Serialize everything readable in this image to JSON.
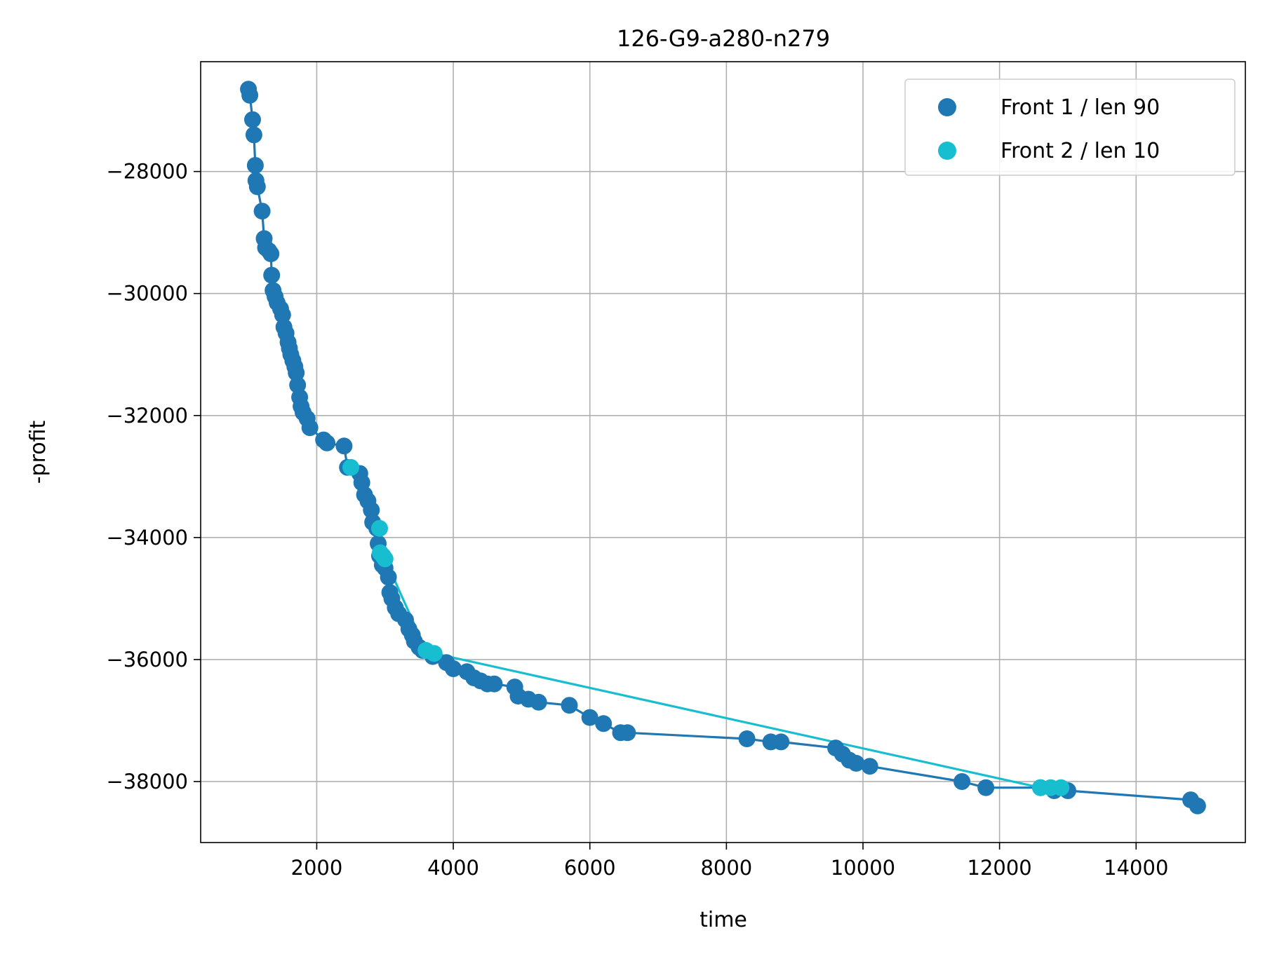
{
  "chart_data": {
    "type": "scatter",
    "title": "126-G9-a280-n279",
    "xlabel": "time",
    "ylabel": "-profit",
    "xlim": [
      300,
      15600
    ],
    "ylim": [
      -39000,
      -26200
    ],
    "xticks": [
      2000,
      4000,
      6000,
      8000,
      10000,
      12000,
      14000
    ],
    "yticks": [
      -28000,
      -30000,
      -32000,
      -34000,
      -36000,
      -38000
    ],
    "xtick_labels": [
      "2000",
      "4000",
      "6000",
      "8000",
      "10000",
      "12000",
      "14000"
    ],
    "ytick_labels": [
      "−28000",
      "−30000",
      "−32000",
      "−34000",
      "−36000",
      "−38000"
    ],
    "grid": true,
    "legend_position": "upper right",
    "series": [
      {
        "name": "Front 1 / len 90",
        "color": "#1f77b4",
        "connected": true,
        "points": [
          [
            1000,
            -26650
          ],
          [
            1020,
            -26750
          ],
          [
            1060,
            -27150
          ],
          [
            1080,
            -27400
          ],
          [
            1100,
            -27900
          ],
          [
            1110,
            -28150
          ],
          [
            1130,
            -28250
          ],
          [
            1200,
            -28650
          ],
          [
            1230,
            -29100
          ],
          [
            1250,
            -29250
          ],
          [
            1300,
            -29300
          ],
          [
            1330,
            -29350
          ],
          [
            1340,
            -29700
          ],
          [
            1360,
            -29950
          ],
          [
            1390,
            -30050
          ],
          [
            1420,
            -30150
          ],
          [
            1470,
            -30250
          ],
          [
            1500,
            -30350
          ],
          [
            1520,
            -30550
          ],
          [
            1550,
            -30650
          ],
          [
            1580,
            -30800
          ],
          [
            1600,
            -30900
          ],
          [
            1620,
            -31000
          ],
          [
            1650,
            -31100
          ],
          [
            1680,
            -31200
          ],
          [
            1700,
            -31300
          ],
          [
            1720,
            -31500
          ],
          [
            1750,
            -31700
          ],
          [
            1770,
            -31850
          ],
          [
            1800,
            -31950
          ],
          [
            1860,
            -32050
          ],
          [
            1900,
            -32200
          ],
          [
            2100,
            -32400
          ],
          [
            2150,
            -32450
          ],
          [
            2400,
            -32500
          ],
          [
            2450,
            -32850
          ],
          [
            2630,
            -32950
          ],
          [
            2660,
            -33100
          ],
          [
            2700,
            -33300
          ],
          [
            2750,
            -33400
          ],
          [
            2800,
            -33550
          ],
          [
            2820,
            -33750
          ],
          [
            2880,
            -33850
          ],
          [
            2900,
            -34100
          ],
          [
            2920,
            -34300
          ],
          [
            2960,
            -34450
          ],
          [
            3000,
            -34500
          ],
          [
            3050,
            -34650
          ],
          [
            3070,
            -34900
          ],
          [
            3100,
            -35000
          ],
          [
            3150,
            -35150
          ],
          [
            3200,
            -35250
          ],
          [
            3300,
            -35350
          ],
          [
            3350,
            -35500
          ],
          [
            3400,
            -35600
          ],
          [
            3430,
            -35700
          ],
          [
            3500,
            -35800
          ],
          [
            3550,
            -35850
          ],
          [
            3700,
            -35950
          ],
          [
            3900,
            -36050
          ],
          [
            4000,
            -36150
          ],
          [
            4200,
            -36200
          ],
          [
            4300,
            -36300
          ],
          [
            4400,
            -36350
          ],
          [
            4500,
            -36400
          ],
          [
            4600,
            -36400
          ],
          [
            4900,
            -36450
          ],
          [
            4950,
            -36600
          ],
          [
            5100,
            -36650
          ],
          [
            5250,
            -36700
          ],
          [
            5700,
            -36750
          ],
          [
            6000,
            -36950
          ],
          [
            6200,
            -37050
          ],
          [
            6450,
            -37200
          ],
          [
            6550,
            -37200
          ],
          [
            8300,
            -37300
          ],
          [
            8650,
            -37350
          ],
          [
            8800,
            -37350
          ],
          [
            9600,
            -37450
          ],
          [
            9700,
            -37550
          ],
          [
            9800,
            -37650
          ],
          [
            9900,
            -37700
          ],
          [
            10100,
            -37750
          ],
          [
            11450,
            -38000
          ],
          [
            11800,
            -38100
          ],
          [
            12600,
            -38100
          ],
          [
            12800,
            -38150
          ],
          [
            13000,
            -38150
          ],
          [
            14800,
            -38300
          ],
          [
            14900,
            -38400
          ]
        ]
      },
      {
        "name": "Front 2 / len 10",
        "color": "#17becf",
        "connected": true,
        "points": [
          [
            2500,
            -32850
          ],
          [
            2920,
            -33850
          ],
          [
            2930,
            -34250
          ],
          [
            2970,
            -34300
          ],
          [
            3000,
            -34350
          ],
          [
            3600,
            -35850
          ],
          [
            3720,
            -35900
          ],
          [
            12600,
            -38100
          ],
          [
            12750,
            -38100
          ],
          [
            12900,
            -38100
          ]
        ]
      }
    ]
  }
}
